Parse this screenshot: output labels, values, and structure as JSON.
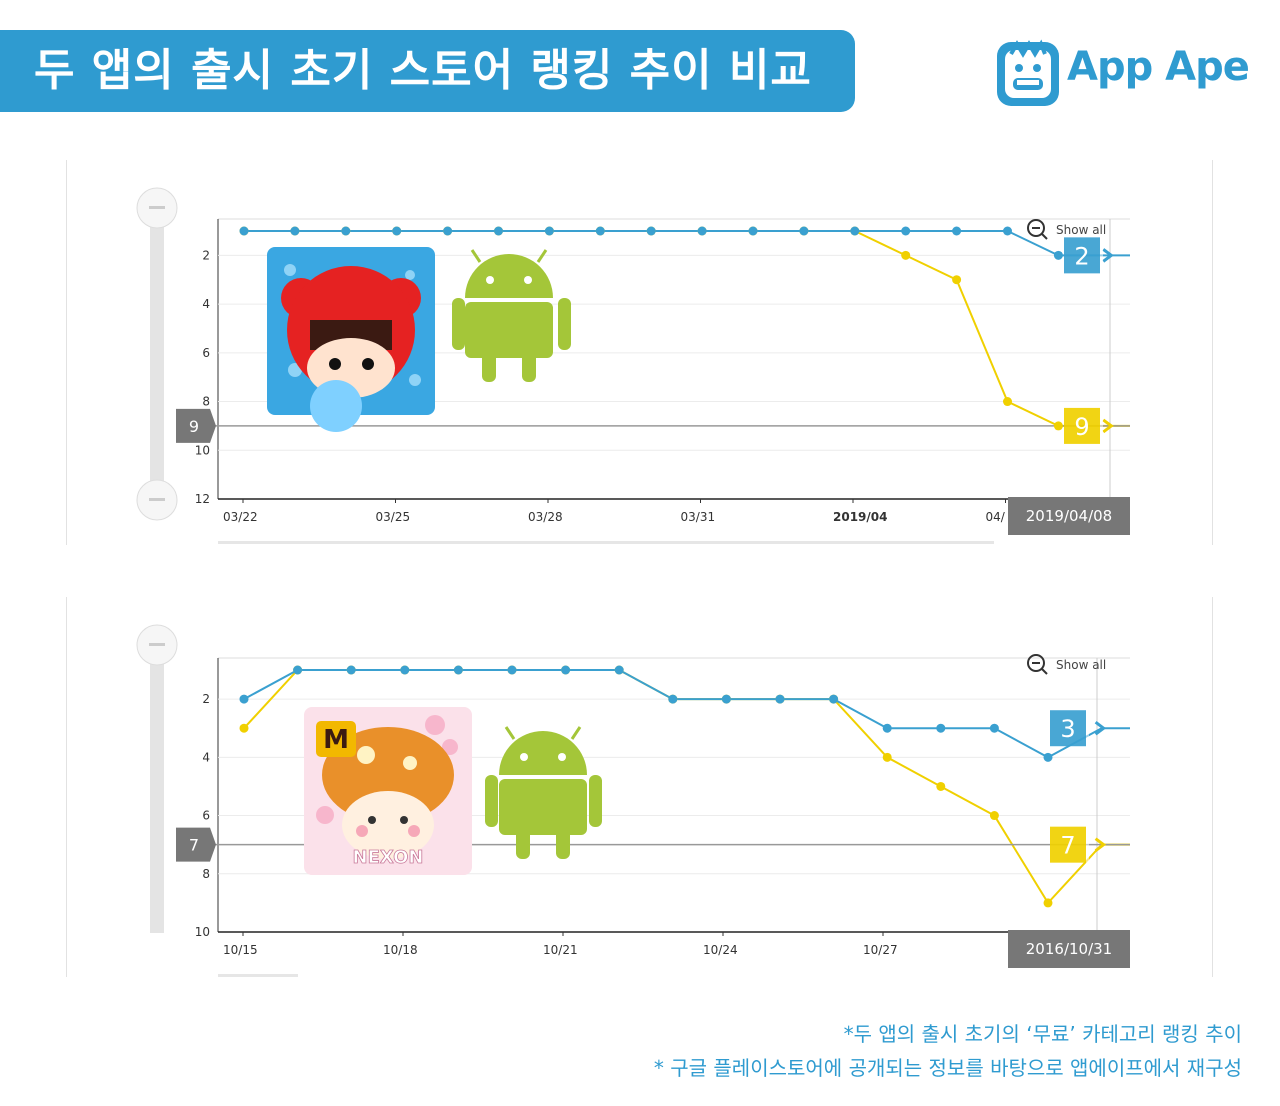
{
  "header": {
    "title": "두 앱의 출시 초기 스토어 랭킹 추이 비교"
  },
  "brand": {
    "name": "App Ape",
    "color": "#2f9bd0",
    "icon": "app-ape-monkey-icon"
  },
  "colors": {
    "blue_series": "#3aa0d0",
    "yellow_series": "#f0d000",
    "badge_gray": "#777777"
  },
  "chart_data": [
    {
      "type": "line",
      "ylim": [
        1,
        12
      ],
      "y_inverted": true,
      "y_ticks": [
        "2",
        "4",
        "6",
        "8",
        "10",
        "12"
      ],
      "x_tick_labels": [
        "03/22",
        "03/25",
        "03/28",
        "03/31",
        "2019/04",
        "04/"
      ],
      "show_all_label": "Show all",
      "current_date_label": "2019/04/08",
      "cursor_rank_label": "9",
      "x_dates": [
        "03/22",
        "03/23",
        "03/24",
        "03/25",
        "03/26",
        "03/27",
        "03/28",
        "03/29",
        "03/30",
        "03/31",
        "04/01",
        "04/02",
        "04/03",
        "04/04",
        "04/05",
        "04/06",
        "04/07",
        "04/08"
      ],
      "series": [
        {
          "color": "#3aa0d0",
          "badge": "2",
          "values": [
            1,
            1,
            1,
            1,
            1,
            1,
            1,
            1,
            1,
            1,
            1,
            1,
            1,
            1,
            1,
            1,
            2,
            2
          ]
        },
        {
          "color": "#f0d000",
          "badge": "9",
          "values": [
            1,
            1,
            1,
            1,
            1,
            1,
            1,
            1,
            1,
            1,
            1,
            1,
            1,
            2,
            3,
            8,
            9,
            9
          ]
        }
      ],
      "icons": [
        "game-app-icon",
        "android-icon"
      ]
    },
    {
      "type": "line",
      "ylim": [
        1,
        10
      ],
      "y_inverted": true,
      "y_ticks": [
        "2",
        "4",
        "6",
        "8",
        "10"
      ],
      "x_tick_labels": [
        "10/15",
        "10/18",
        "10/21",
        "10/24",
        "10/27"
      ],
      "show_all_label": "Show all",
      "current_date_label": "2016/10/31",
      "cursor_rank_label": "7",
      "app_icon_text": "NEXON",
      "app_icon_badge": "M",
      "x_dates": [
        "10/15",
        "10/16",
        "10/17",
        "10/18",
        "10/19",
        "10/20",
        "10/21",
        "10/22",
        "10/23",
        "10/24",
        "10/25",
        "10/26",
        "10/27",
        "10/28",
        "10/29",
        "10/30",
        "10/31"
      ],
      "series": [
        {
          "color": "#3aa0d0",
          "badge": "3",
          "values": [
            2,
            1,
            1,
            1,
            1,
            1,
            1,
            1,
            2,
            2,
            2,
            2,
            3,
            3,
            3,
            4,
            3
          ]
        },
        {
          "color": "#f0d000",
          "badge": "7",
          "values": [
            3,
            1,
            1,
            1,
            1,
            1,
            1,
            1,
            2,
            2,
            2,
            2,
            4,
            5,
            6,
            9,
            7
          ]
        }
      ],
      "icons": [
        "maplestory-app-icon",
        "android-icon"
      ]
    }
  ],
  "footnotes": [
    "*두 앱의 출시 초기의 ‘무료’ 카테고리 랭킹 추이",
    "* 구글 플레이스토어에 공개되는 정보를 바탕으로 앱에이프에서 재구성"
  ]
}
